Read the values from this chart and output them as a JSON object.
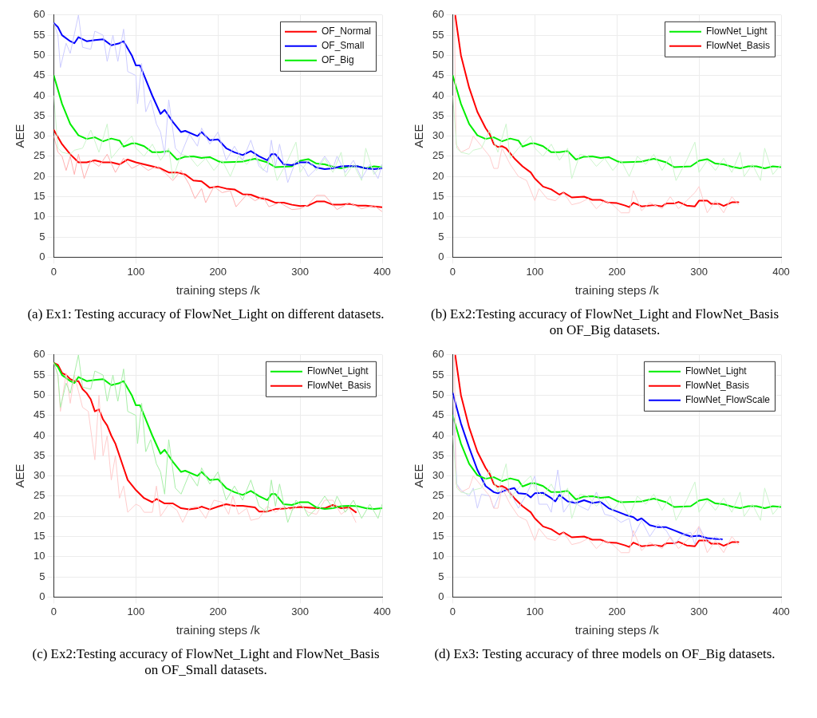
{
  "chart_data": [
    {
      "type": "line",
      "title": "(a) Ex1: Testing accuracy of FlowNet_Light on different datasets.",
      "xlabel": "training steps /k",
      "ylabel": "AEE",
      "xlim": [
        0,
        400
      ],
      "xticks": [
        0,
        100,
        200,
        300,
        400
      ],
      "ylim": [
        0,
        60
      ],
      "yticks": [
        0,
        5,
        10,
        15,
        20,
        25,
        30,
        35,
        40,
        45,
        50,
        55,
        60
      ],
      "grid": true,
      "legend": "top right",
      "series": [
        {
          "color": "#ffb0b0",
          "x": [
            0,
            5,
            10,
            15,
            20,
            25,
            30,
            37,
            45,
            55,
            65,
            75,
            85,
            95,
            105,
            115,
            125,
            135,
            145,
            155,
            165,
            172,
            180,
            185,
            195,
            205,
            215,
            222,
            235,
            245,
            255,
            262,
            275,
            290,
            300,
            310,
            320,
            330,
            345,
            360,
            375,
            390,
            400
          ],
          "values": [
            30,
            26,
            25,
            21.5,
            25,
            20.5,
            25.5,
            19.5,
            24,
            22.5,
            25.5,
            21,
            24.5,
            22,
            23,
            21.5,
            22.5,
            21,
            19,
            21.5,
            18,
            14.5,
            17,
            13.5,
            17.5,
            16,
            16.5,
            12.5,
            15.5,
            14,
            15,
            12.5,
            13.5,
            11.8,
            12,
            13,
            15.3,
            15.3,
            11.8,
            13.5,
            12,
            12.8,
            11.3
          ]
        },
        {
          "color": "#ccccff",
          "x": [
            0,
            5,
            8,
            15,
            20,
            30,
            35,
            45,
            50,
            60,
            65,
            72,
            78,
            85,
            90,
            100,
            102,
            107,
            112,
            118,
            125,
            130,
            135,
            140,
            148,
            155,
            165,
            175,
            180,
            190,
            200,
            210,
            220,
            230,
            240,
            250,
            260,
            265,
            270,
            275,
            285,
            295,
            305,
            310,
            320,
            330,
            340,
            345,
            355,
            365,
            375,
            385,
            395,
            400
          ],
          "values": [
            58,
            55,
            47,
            53,
            50.5,
            60,
            52,
            51.5,
            56,
            55,
            48.5,
            55,
            48.5,
            56.5,
            46,
            45,
            38,
            48,
            36,
            39,
            33,
            31,
            25.5,
            39,
            27,
            25.5,
            30.5,
            27.5,
            32,
            28,
            31,
            24,
            27.5,
            24,
            29,
            22.5,
            21,
            29,
            22.5,
            28,
            18.5,
            24,
            22,
            20,
            22,
            25,
            22,
            25,
            21,
            24,
            19.5,
            23,
            19.5,
            23
          ]
        },
        {
          "color": "#ccf5cc",
          "x": [
            0,
            5,
            10,
            20,
            25,
            35,
            45,
            55,
            65,
            70,
            80,
            95,
            100,
            110,
            120,
            130,
            140,
            145,
            155,
            165,
            175,
            185,
            195,
            205,
            215,
            225,
            235,
            245,
            255,
            265,
            272,
            285,
            295,
            300,
            310,
            320,
            330,
            340,
            350,
            355,
            365,
            375,
            380,
            390,
            400
          ],
          "values": [
            40,
            27,
            26,
            25.5,
            26.5,
            27,
            31.5,
            26,
            33,
            24.5,
            27,
            30,
            27,
            25,
            28,
            24,
            27,
            19.5,
            25.5,
            25,
            22.5,
            24.5,
            21.5,
            24,
            20,
            25,
            23,
            25.5,
            21.5,
            25,
            19,
            24,
            28.5,
            21,
            24,
            21.5,
            24.5,
            21,
            26,
            20,
            23,
            19,
            27,
            20.5,
            23
          ]
        },
        {
          "name": "OF_Normal",
          "color": "#ff0000",
          "x": [
            0,
            10,
            20,
            30,
            40,
            50,
            60,
            70,
            80,
            90,
            100,
            110,
            120,
            130,
            140,
            150,
            160,
            170,
            180,
            190,
            200,
            210,
            220,
            230,
            240,
            250,
            260,
            270,
            280,
            290,
            300,
            310,
            320,
            330,
            340,
            350,
            360,
            370,
            380,
            390,
            400
          ],
          "values": [
            31.5,
            28,
            25.5,
            23.5,
            23.5,
            24,
            23.5,
            23.5,
            23,
            24.2,
            23.5,
            23,
            22.5,
            22,
            21,
            21,
            20.5,
            19,
            18.8,
            17.2,
            17.5,
            17,
            16.8,
            15.6,
            15.5,
            14.7,
            14.3,
            13.5,
            13.5,
            13,
            12.7,
            12.8,
            13.8,
            13.8,
            13,
            13,
            13.2,
            12.8,
            12.8,
            12.6,
            12.4
          ]
        },
        {
          "name": "OF_Small",
          "color": "#0000ff",
          "x": [
            0,
            5,
            10,
            20,
            25,
            30,
            40,
            50,
            60,
            70,
            80,
            85,
            95,
            100,
            105,
            110,
            120,
            130,
            135,
            145,
            155,
            160,
            175,
            180,
            190,
            200,
            210,
            220,
            230,
            240,
            250,
            260,
            265,
            270,
            280,
            290,
            300,
            310,
            320,
            330,
            340,
            350,
            360,
            370,
            380,
            390,
            400
          ],
          "values": [
            58,
            57,
            55,
            53.5,
            53,
            54.5,
            53.5,
            53.8,
            54,
            52.5,
            53,
            53.5,
            50,
            47.5,
            47.5,
            45,
            40,
            35.5,
            36.5,
            33.5,
            31,
            31.3,
            30,
            31,
            29,
            29.2,
            27,
            26,
            25.3,
            26.3,
            25,
            24,
            25.5,
            25.5,
            23,
            22.8,
            23.5,
            23.5,
            22.2,
            21.8,
            22,
            22.5,
            22.6,
            22.5,
            22,
            21.8,
            22
          ]
        },
        {
          "name": "OF_Big",
          "color": "#00ee00",
          "x": [
            0,
            10,
            20,
            30,
            40,
            50,
            60,
            70,
            80,
            85,
            95,
            100,
            110,
            120,
            130,
            140,
            150,
            160,
            170,
            180,
            190,
            200,
            205,
            220,
            230,
            245,
            260,
            270,
            290,
            300,
            310,
            320,
            330,
            340,
            350,
            360,
            370,
            380,
            390,
            400
          ],
          "values": [
            45,
            38,
            33,
            30.2,
            29.3,
            29.7,
            28.7,
            29.4,
            28.9,
            27.4,
            28.2,
            28.2,
            27.5,
            26,
            26,
            26.3,
            24.2,
            24.9,
            25,
            24.6,
            24.8,
            23.8,
            23.5,
            23.6,
            23.7,
            24.4,
            23.5,
            22.3,
            22.5,
            23.9,
            24.3,
            23.2,
            23,
            22.4,
            22,
            22.5,
            22.5,
            22,
            22.5,
            22.3
          ]
        }
      ]
    },
    {
      "type": "line",
      "title": "(b) Ex2:Testing accuracy of FlowNet_Light and FlowNet_Basis on OF_Big datasets.",
      "xlabel": "training steps /k",
      "ylabel": "AEE",
      "xlim": [
        0,
        400
      ],
      "xticks": [
        0,
        100,
        200,
        300,
        400
      ],
      "ylim": [
        0,
        60
      ],
      "yticks": [
        0,
        5,
        10,
        15,
        20,
        25,
        30,
        35,
        40,
        45,
        50,
        55,
        60
      ],
      "grid": true,
      "legend": "top right",
      "series": [
        {
          "color": "#ccf5cc",
          "x": [
            0,
            5,
            10,
            20,
            25,
            35,
            45,
            55,
            65,
            70,
            80,
            95,
            100,
            110,
            120,
            130,
            140,
            145,
            155,
            165,
            175,
            185,
            195,
            205,
            215,
            225,
            235,
            245,
            255,
            265,
            272,
            285,
            295,
            300,
            310,
            320,
            330,
            340,
            350,
            355,
            365,
            375,
            380,
            390,
            400
          ],
          "values": [
            40,
            27,
            26,
            25.5,
            26.5,
            27,
            31.5,
            26,
            33,
            24.5,
            27,
            30,
            27,
            25,
            28,
            24,
            27,
            19.5,
            25.5,
            25,
            22.5,
            24.5,
            21.5,
            24,
            20,
            25,
            23,
            25.5,
            21.5,
            25,
            19,
            24,
            28.5,
            21,
            24,
            21.5,
            24.5,
            21,
            26,
            20,
            23,
            19,
            27,
            20.5,
            23
          ]
        },
        {
          "color": "#ffcccc",
          "x": [
            2,
            4,
            10,
            20,
            25,
            35,
            45,
            50,
            55,
            60,
            70,
            80,
            90,
            100,
            105,
            115,
            125,
            135,
            145,
            155,
            165,
            175,
            185,
            195,
            205,
            215,
            220,
            230,
            240,
            255,
            265,
            275,
            285,
            295,
            300,
            310,
            320,
            330,
            340,
            348
          ],
          "values": [
            60,
            28,
            26,
            27,
            30,
            27.5,
            25,
            22,
            22,
            27,
            23,
            20,
            19,
            14,
            17,
            14.5,
            14,
            16,
            13,
            13.5,
            14.5,
            12,
            14,
            13,
            11,
            11,
            16.5,
            11.5,
            13.5,
            12,
            15,
            12,
            14,
            16,
            17.5,
            11,
            14,
            11,
            15,
            13
          ]
        },
        {
          "name": "FlowNet_Light",
          "color": "#00ee00",
          "x": [
            0,
            10,
            20,
            30,
            40,
            50,
            60,
            70,
            80,
            85,
            95,
            100,
            110,
            120,
            130,
            140,
            150,
            160,
            170,
            180,
            190,
            200,
            205,
            220,
            230,
            245,
            260,
            270,
            290,
            300,
            310,
            320,
            330,
            340,
            350,
            360,
            370,
            380,
            390,
            400
          ],
          "values": [
            45,
            38,
            33,
            30.2,
            29.3,
            29.7,
            28.7,
            29.4,
            28.9,
            27.4,
            28.2,
            28.2,
            27.5,
            26,
            26,
            26.3,
            24.2,
            24.9,
            25,
            24.6,
            24.8,
            23.8,
            23.5,
            23.6,
            23.7,
            24.4,
            23.5,
            22.3,
            22.5,
            23.9,
            24.3,
            23.2,
            23,
            22.4,
            22,
            22.5,
            22.5,
            22,
            22.5,
            22.3
          ]
        },
        {
          "name": "FlowNet_Basis",
          "color": "#ff0000",
          "x": [
            3,
            10,
            20,
            30,
            40,
            45,
            50,
            55,
            60,
            65,
            75,
            85,
            95,
            100,
            110,
            120,
            130,
            135,
            145,
            160,
            170,
            180,
            190,
            200,
            210,
            215,
            220,
            230,
            245,
            255,
            260,
            270,
            275,
            285,
            295,
            300,
            310,
            315,
            325,
            330,
            340,
            348
          ],
          "values": [
            60,
            50,
            42,
            36,
            32,
            30.5,
            28,
            27.3,
            27.5,
            27,
            24.5,
            22.5,
            21,
            19.5,
            17.5,
            16.8,
            15.5,
            16,
            14.8,
            15,
            14.2,
            14.2,
            13.5,
            13.4,
            12.8,
            12.4,
            13.5,
            12.6,
            12.9,
            12.6,
            13.3,
            13.3,
            13.7,
            12.8,
            12.6,
            14,
            14,
            13.2,
            13.2,
            12.7,
            13.6,
            13.6
          ]
        }
      ]
    },
    {
      "type": "line",
      "title": "(c) Ex2:Testing accuracy of FlowNet_Light and FlowNet_Basis on OF_Small datasets.",
      "xlabel": "training steps /k",
      "ylabel": "AEE",
      "xlim": [
        0,
        400
      ],
      "xticks": [
        0,
        100,
        200,
        300,
        400
      ],
      "ylim": [
        0,
        60
      ],
      "yticks": [
        0,
        5,
        10,
        15,
        20,
        25,
        30,
        35,
        40,
        45,
        50,
        55,
        60
      ],
      "grid": true,
      "legend": "top right",
      "series": [
        {
          "color": "#a8eea8",
          "x": [
            0,
            5,
            8,
            15,
            20,
            30,
            35,
            45,
            50,
            60,
            65,
            72,
            78,
            85,
            90,
            100,
            102,
            107,
            112,
            118,
            125,
            130,
            135,
            140,
            148,
            155,
            165,
            175,
            180,
            190,
            200,
            210,
            220,
            230,
            240,
            250,
            260,
            265,
            270,
            275,
            285,
            295,
            305,
            310,
            320,
            330,
            340,
            345,
            355,
            365,
            375,
            385,
            395,
            400
          ],
          "values": [
            58,
            55,
            47,
            53,
            50.5,
            60,
            52,
            51.5,
            56,
            55,
            48.5,
            55,
            48.5,
            56.5,
            46,
            45,
            38,
            48,
            36,
            39,
            33,
            31,
            25.5,
            39,
            27,
            25.5,
            30.5,
            27.5,
            32,
            28,
            31,
            24,
            27.5,
            24,
            29,
            22.5,
            21,
            29,
            22.5,
            28,
            18.5,
            24,
            22,
            20,
            22,
            25,
            22,
            25,
            21,
            24,
            19.5,
            23,
            19.5,
            23
          ]
        },
        {
          "color": "#ffcccc",
          "x": [
            0,
            5,
            8,
            15,
            20,
            25,
            35,
            42,
            50,
            55,
            60,
            65,
            70,
            75,
            80,
            85,
            90,
            100,
            105,
            110,
            120,
            125,
            130,
            140,
            150,
            157,
            165,
            175,
            185,
            195,
            205,
            213,
            218,
            225,
            235,
            240,
            250,
            260,
            270,
            280,
            290,
            300,
            310,
            320,
            330,
            340,
            350,
            360,
            368
          ],
          "values": [
            58,
            55,
            46,
            55.5,
            48,
            55,
            47,
            46,
            34,
            50,
            35,
            40,
            29,
            35,
            24.5,
            27.5,
            21,
            23,
            22.5,
            21,
            21,
            27.5,
            20,
            23,
            21.5,
            18.5,
            22,
            22.5,
            19.5,
            24,
            23.5,
            20.5,
            25,
            20.5,
            22,
            19,
            19.5,
            22.5,
            21,
            22.5,
            21.5,
            23,
            21,
            20.5,
            24,
            24,
            20.5,
            22,
            18.5
          ]
        },
        {
          "name": "FlowNet_Light",
          "color": "#00ee00",
          "x": [
            0,
            5,
            10,
            20,
            25,
            30,
            40,
            50,
            60,
            70,
            80,
            85,
            95,
            100,
            105,
            110,
            120,
            130,
            135,
            145,
            155,
            160,
            175,
            180,
            190,
            200,
            210,
            220,
            230,
            240,
            250,
            260,
            265,
            270,
            280,
            290,
            300,
            310,
            320,
            330,
            340,
            350,
            360,
            370,
            380,
            390,
            400
          ],
          "values": [
            58,
            57,
            55,
            53.5,
            53,
            54.5,
            53.5,
            53.8,
            54,
            52.5,
            53,
            53.5,
            50,
            47.5,
            47.5,
            45,
            40,
            35.5,
            36.5,
            33.5,
            31,
            31.3,
            30,
            31,
            29,
            29.2,
            27,
            26,
            25.3,
            26.3,
            25,
            24,
            25.5,
            25.5,
            23,
            22.8,
            23.5,
            23.5,
            22.2,
            21.8,
            22,
            22.5,
            22.6,
            22.5,
            22,
            21.8,
            22
          ]
        },
        {
          "name": "FlowNet_Basis",
          "color": "#ff0000",
          "x": [
            0,
            5,
            10,
            15,
            20,
            25,
            30,
            35,
            40,
            45,
            50,
            55,
            60,
            65,
            70,
            75,
            80,
            85,
            90,
            100,
            110,
            120,
            125,
            135,
            145,
            155,
            165,
            175,
            180,
            190,
            200,
            210,
            220,
            230,
            245,
            250,
            260,
            270,
            280,
            300,
            320,
            330,
            340,
            350,
            360,
            368
          ],
          "values": [
            58,
            57.5,
            55.5,
            55,
            54,
            53.5,
            53.5,
            51.5,
            50.5,
            49,
            46,
            46.5,
            44,
            42.5,
            40,
            38,
            35,
            32,
            29,
            26.5,
            24.5,
            23.5,
            24.3,
            23.2,
            23.2,
            22,
            21.7,
            22,
            22.4,
            21.7,
            22.4,
            23,
            22.6,
            22.6,
            22.2,
            21.2,
            21.2,
            21.8,
            21.9,
            22.3,
            22,
            22,
            22.8,
            22,
            22.2,
            21
          ]
        }
      ]
    },
    {
      "type": "line",
      "title": "(d) Ex3: Testing accuracy of three models on OF_Big datasets.",
      "xlabel": "training steps /k",
      "ylabel": "AEE",
      "xlim": [
        0,
        400
      ],
      "xticks": [
        0,
        100,
        200,
        300,
        400
      ],
      "ylim": [
        0,
        60
      ],
      "yticks": [
        0,
        5,
        10,
        15,
        20,
        25,
        30,
        35,
        40,
        45,
        50,
        55,
        60
      ],
      "grid": true,
      "legend": "top right",
      "series": [
        {
          "color": "#ccf5cc",
          "x": [
            0,
            5,
            10,
            20,
            25,
            35,
            45,
            55,
            65,
            70,
            80,
            95,
            100,
            110,
            120,
            130,
            140,
            145,
            155,
            165,
            175,
            185,
            195,
            205,
            215,
            225,
            235,
            245,
            255,
            265,
            272,
            285,
            295,
            300,
            310,
            320,
            330,
            340,
            350,
            355,
            365,
            375,
            380,
            390,
            400
          ],
          "values": [
            40,
            27,
            26,
            25.5,
            26.5,
            27,
            31.5,
            26,
            33,
            24.5,
            27,
            30,
            27,
            25,
            28,
            24,
            27,
            19.5,
            25.5,
            25,
            22.5,
            24.5,
            21.5,
            24,
            20,
            25,
            23,
            25.5,
            21.5,
            25,
            19,
            24,
            28.5,
            21,
            24,
            21.5,
            24.5,
            21,
            26,
            20,
            23,
            19,
            27,
            20.5,
            23
          ]
        },
        {
          "color": "#ffcccc",
          "x": [
            2,
            4,
            10,
            20,
            25,
            35,
            45,
            50,
            55,
            60,
            70,
            80,
            90,
            100,
            105,
            115,
            125,
            135,
            145,
            155,
            165,
            175,
            185,
            195,
            205,
            215,
            220,
            230,
            240,
            255,
            265,
            275,
            285,
            295,
            300,
            310,
            320,
            330,
            340,
            348
          ],
          "values": [
            60,
            28,
            26,
            27,
            30,
            27.5,
            25,
            22,
            22,
            27,
            23,
            20,
            19,
            14,
            17,
            14.5,
            14,
            16,
            13,
            13.5,
            14.5,
            12,
            14,
            13,
            11,
            11,
            16.5,
            11.5,
            13.5,
            12,
            15,
            12,
            14,
            16,
            17.5,
            11,
            14,
            11,
            15,
            13
          ]
        },
        {
          "color": "#ccccff",
          "x": [
            0,
            5,
            10,
            20,
            25,
            30,
            35,
            45,
            50,
            60,
            70,
            80,
            90,
            100,
            105,
            115,
            120,
            128,
            135,
            145,
            155,
            165,
            175,
            185,
            195,
            205,
            215,
            220,
            230,
            240,
            250,
            260,
            270,
            280,
            290,
            295,
            300,
            310,
            320,
            328
          ],
          "values": [
            50,
            28,
            26.5,
            25,
            27,
            22,
            25.5,
            25,
            22,
            27,
            26,
            22,
            25.5,
            30,
            23,
            23,
            21,
            31.5,
            21,
            24,
            22.5,
            21.5,
            26,
            20.5,
            20,
            18.5,
            19.5,
            15,
            19,
            15,
            18,
            16.5,
            13,
            15.5,
            16,
            13,
            17.5,
            13.5,
            15,
            14
          ]
        },
        {
          "name": "FlowNet_Light",
          "color": "#00ee00",
          "x": [
            0,
            10,
            20,
            30,
            40,
            50,
            60,
            70,
            80,
            85,
            95,
            100,
            110,
            120,
            130,
            140,
            150,
            160,
            170,
            180,
            190,
            200,
            205,
            220,
            230,
            245,
            260,
            270,
            290,
            300,
            310,
            320,
            330,
            340,
            350,
            360,
            370,
            380,
            390,
            400
          ],
          "values": [
            45,
            38,
            33,
            30.2,
            29.3,
            29.7,
            28.7,
            29.4,
            28.9,
            27.4,
            28.2,
            28.2,
            27.5,
            26,
            26,
            26.3,
            24.2,
            24.9,
            25,
            24.6,
            24.8,
            23.8,
            23.5,
            23.6,
            23.7,
            24.4,
            23.5,
            22.3,
            22.5,
            23.9,
            24.3,
            23.2,
            23,
            22.4,
            22,
            22.5,
            22.5,
            22,
            22.5,
            22.3
          ]
        },
        {
          "name": "FlowNet_Basis",
          "color": "#ff0000",
          "x": [
            3,
            10,
            20,
            30,
            40,
            45,
            50,
            55,
            60,
            65,
            75,
            85,
            95,
            100,
            110,
            120,
            130,
            135,
            145,
            160,
            170,
            180,
            190,
            200,
            210,
            215,
            220,
            230,
            245,
            255,
            260,
            270,
            275,
            285,
            295,
            300,
            310,
            315,
            325,
            330,
            340,
            348
          ],
          "values": [
            60,
            50,
            42,
            36,
            32,
            30.5,
            28,
            27.3,
            27.5,
            27,
            24.5,
            22.5,
            21,
            19.5,
            17.5,
            16.8,
            15.5,
            16,
            14.8,
            15,
            14.2,
            14.2,
            13.5,
            13.4,
            12.8,
            12.4,
            13.5,
            12.6,
            12.9,
            12.6,
            13.3,
            13.3,
            13.7,
            12.8,
            12.6,
            14,
            14,
            13.2,
            13.2,
            12.7,
            13.6,
            13.6
          ]
        },
        {
          "name": "FlowNet_FlowScale",
          "color": "#0000ff",
          "x": [
            0,
            10,
            20,
            30,
            40,
            50,
            55,
            65,
            75,
            80,
            90,
            95,
            100,
            110,
            120,
            125,
            130,
            140,
            150,
            160,
            170,
            180,
            190,
            200,
            210,
            220,
            225,
            230,
            240,
            250,
            260,
            270,
            280,
            290,
            300,
            310,
            320,
            328
          ],
          "values": [
            50.5,
            43,
            37,
            31.5,
            27.5,
            26,
            25.7,
            26.5,
            27,
            25.7,
            25.5,
            24.7,
            25.7,
            25.8,
            24.5,
            23.7,
            25.3,
            23.7,
            23.3,
            24,
            23.3,
            23.6,
            22,
            21.2,
            20.4,
            19.8,
            19,
            19.5,
            17.8,
            17.3,
            17.3,
            16.5,
            15.7,
            15,
            15.2,
            14.6,
            14.4,
            14.3
          ]
        }
      ]
    }
  ]
}
